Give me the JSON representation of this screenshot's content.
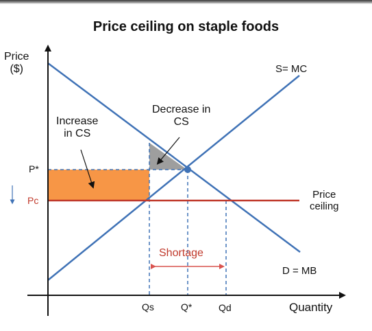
{
  "title": "Price ceiling on staple foods",
  "axes": {
    "y_title_line1": "Price",
    "y_title_line2": "($)",
    "x_title": "Quantity"
  },
  "ticks": {
    "p_star": "P*",
    "p_c": "Pc",
    "q_s": "Qs",
    "q_star": "Q*",
    "q_d": "Qd"
  },
  "labels": {
    "supply": "S= MC",
    "demand": "D = MB",
    "ceiling_line1": "Price",
    "ceiling_line2": "ceiling",
    "shortage": "Shortage",
    "increase_cs_line1": "Increase",
    "increase_cs_line2": "in CS",
    "decrease_cs_line1": "Decrease in",
    "decrease_cs_line2": "CS"
  },
  "colors": {
    "curve": "#3f72b6",
    "ceiling": "#c0392b",
    "gain_area": "#f79646",
    "loss_area": "#9e9e9e"
  }
}
